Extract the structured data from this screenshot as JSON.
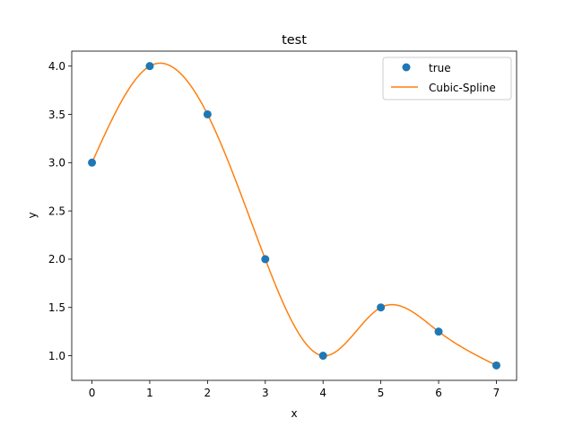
{
  "chart_data": {
    "type": "line",
    "title": "test",
    "xlabel": "x",
    "ylabel": "y",
    "xlim": [
      -0.35,
      7.35
    ],
    "ylim": [
      0.745,
      4.155
    ],
    "x_ticks": [
      0,
      1,
      2,
      3,
      4,
      5,
      6,
      7
    ],
    "x_tick_labels": [
      "0",
      "1",
      "2",
      "3",
      "4",
      "5",
      "6",
      "7"
    ],
    "y_ticks": [
      1.0,
      1.5,
      2.0,
      2.5,
      3.0,
      3.5,
      4.0
    ],
    "y_tick_labels": [
      "1.0",
      "1.5",
      "2.0",
      "2.5",
      "3.0",
      "3.5",
      "4.0"
    ],
    "grid": false,
    "legend_position": "upper right",
    "series": [
      {
        "name": "true",
        "kind": "scatter",
        "color": "#1f77b4",
        "x": [
          0,
          1,
          2,
          3,
          4,
          5,
          6,
          7
        ],
        "y": [
          3.0,
          4.0,
          3.5,
          2.0,
          1.0,
          1.5,
          1.25,
          0.9
        ]
      },
      {
        "name": "Cubic-Spline",
        "kind": "line",
        "interpolation": "natural cubic spline through the 'true' points",
        "color": "#ff7f0e"
      }
    ]
  }
}
